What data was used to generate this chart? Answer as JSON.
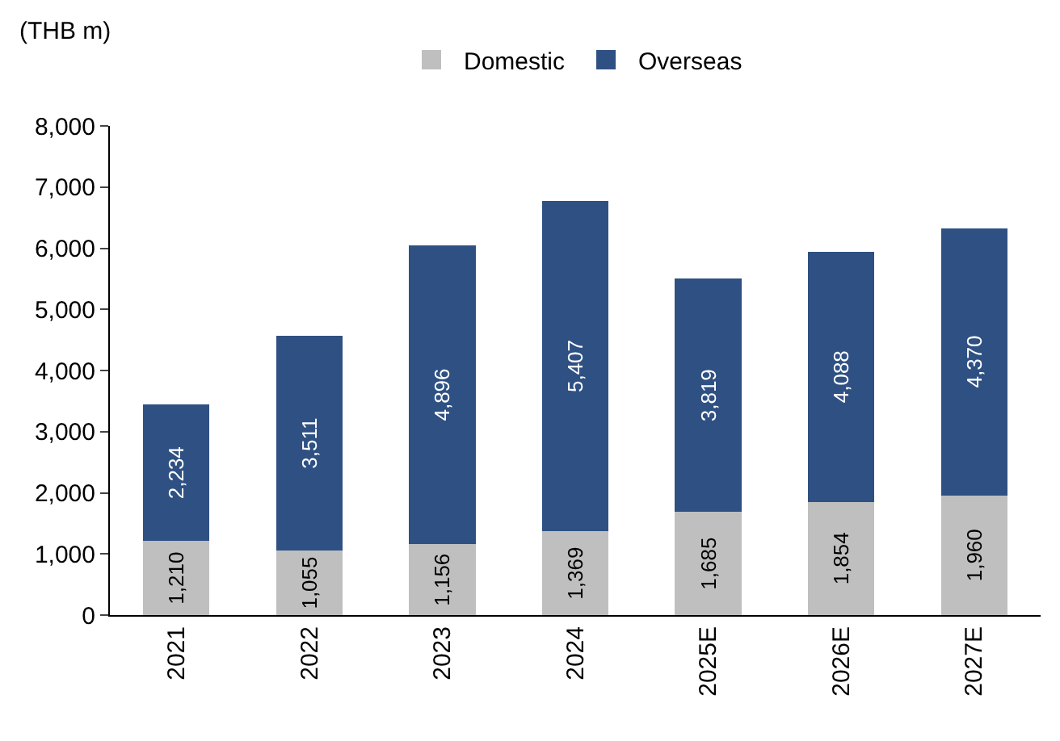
{
  "chart_data": {
    "type": "bar",
    "stacked": true,
    "ylabel": "(THB m)",
    "legend": "top",
    "categories": [
      "2021",
      "2022",
      "2023",
      "2024",
      "2025E",
      "2026E",
      "2027E"
    ],
    "series": [
      {
        "name": "Domestic",
        "color": "#bfbfbf",
        "values": [
          1210,
          1055,
          1156,
          1369,
          1685,
          1854,
          1960
        ],
        "value_labels": [
          "1,210",
          "1,055",
          "1,156",
          "1,369",
          "1,685",
          "1,854",
          "1,960"
        ]
      },
      {
        "name": "Overseas",
        "color": "#2f5083",
        "values": [
          2234,
          3511,
          4896,
          5407,
          3819,
          4088,
          4370
        ],
        "value_labels": [
          "2,234",
          "3,511",
          "4,896",
          "5,407",
          "3,819",
          "4,088",
          "4,370"
        ]
      }
    ],
    "ylim": [
      0,
      8000
    ],
    "yticks": [
      0,
      {
        "value": 1000,
        "label": "1,000"
      },
      {
        "value": 2000,
        "label": "2,000"
      },
      {
        "value": 3000,
        "label": "3,000"
      },
      {
        "value": 4000,
        "label": "4,000"
      },
      {
        "value": 5000,
        "label": "5,000"
      },
      {
        "value": 6000,
        "label": "6,000"
      },
      {
        "value": 7000,
        "label": "7,000"
      },
      {
        "value": 8000,
        "label": "8,000"
      }
    ]
  }
}
